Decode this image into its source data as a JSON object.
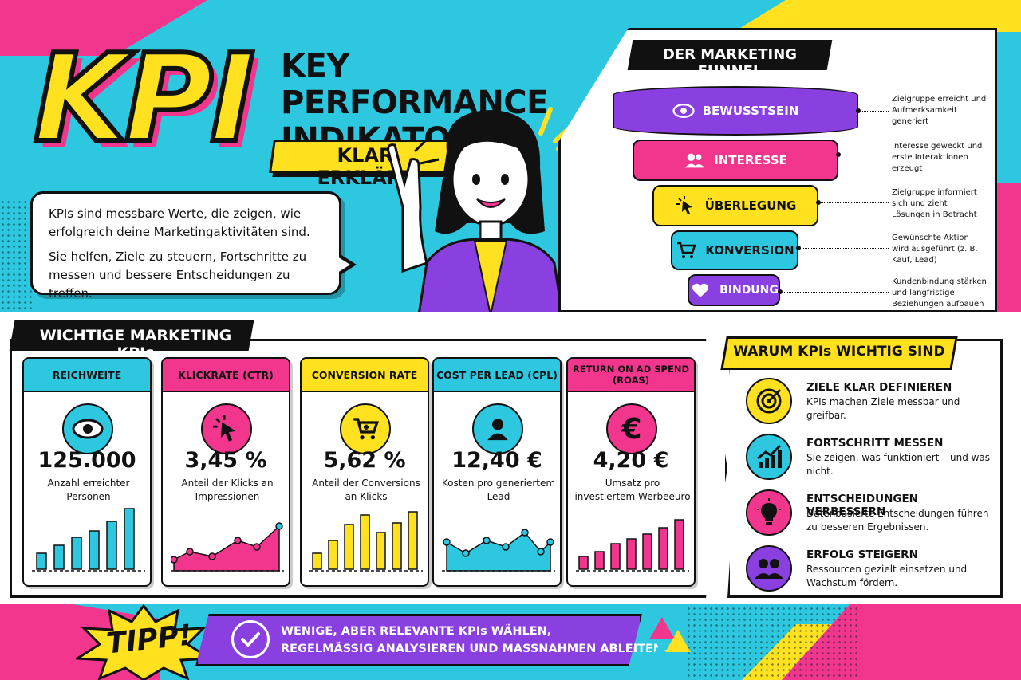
{
  "header": {
    "kpi": "KPI",
    "title": "KEY PERFORMANCE INDIKATOR",
    "subtitle": "KLAR ERKLÄRT",
    "intro_p1": "KPIs sind messbare Werte, die zeigen, wie erfolgreich deine Marketingaktivitäten sind.",
    "intro_p2": "Sie helfen, Ziele zu steuern, Fortschritte zu messen und bessere Entscheidungen zu treffen."
  },
  "funnel": {
    "title": "DER MARKETING FUNNEL",
    "stages": [
      {
        "label": "BEWUSSTSEIN",
        "icon": "eye-icon",
        "color": "#8a3fe0",
        "desc": "Zielgruppe erreicht und Aufmerksamkeit generiert"
      },
      {
        "label": "INTERESSE",
        "icon": "people-icon",
        "color": "#f2358d",
        "desc": "Interesse geweckt und erste Interaktionen erzeugt"
      },
      {
        "label": "ÜBERLEGUNG",
        "icon": "cursor-icon",
        "color": "#ffe11f",
        "desc": "Zielgruppe informiert sich und zieht Lösungen in Betracht"
      },
      {
        "label": "KONVERSION",
        "icon": "cart-icon",
        "color": "#2ec7e0",
        "desc": "Gewünschte Aktion wird ausgeführt (z. B. Kauf, Lead)"
      },
      {
        "label": "BINDUNG",
        "icon": "heart-icon",
        "color": "#8a3fe0",
        "desc": "Kundenbindung stärken und langfristige Beziehungen aufbauen"
      }
    ]
  },
  "kpis": {
    "title": "WICHTIGE MARKETING KPIs",
    "cards": [
      {
        "title": "REICHWEITE",
        "value": "125.000",
        "label": "Anzahl erreichter Personen",
        "color": "#2ec7e0",
        "icon": "eye-icon"
      },
      {
        "title": "KLICKRATE (CTR)",
        "value": "3,45 %",
        "label": "Anteil der Klicks an Impressionen",
        "color": "#f2358d",
        "icon": "cursor-icon"
      },
      {
        "title": "CONVERSION RATE",
        "value": "5,62 %",
        "label": "Anteil der Conversions an Klicks",
        "color": "#ffe11f",
        "icon": "cart-icon"
      },
      {
        "title": "COST PER LEAD (CPL)",
        "value": "12,40 €",
        "label": "Kosten pro generiertem Lead",
        "color": "#2ec7e0",
        "icon": "person-icon"
      },
      {
        "title": "RETURN ON AD SPEND (ROAS)",
        "value": "4,20 €",
        "label": "Umsatz pro investiertem Werbeeuro",
        "color": "#f2358d",
        "icon": "euro-icon"
      }
    ]
  },
  "why": {
    "title": "WARUM KPIs WICHTIG SIND",
    "items": [
      {
        "heading": "ZIELE KLAR DEFINIEREN",
        "text": "KPIs machen Ziele messbar und greifbar.",
        "color": "#ffe11f",
        "icon": "target-icon"
      },
      {
        "heading": "FORTSCHRITT MESSEN",
        "text": "Sie zeigen, was funktioniert – und was nicht.",
        "color": "#2ec7e0",
        "icon": "growth-chart-icon"
      },
      {
        "heading": "ENTSCHEIDUNGEN VERBESSERN",
        "text": "Datenbasierte Entscheidungen führen zu besseren Ergebnissen.",
        "color": "#f2358d",
        "icon": "lightbulb-icon"
      },
      {
        "heading": "ERFOLG STEIGERN",
        "text": "Ressourcen gezielt einsetzen und Wachstum fördern.",
        "color": "#8a3fe0",
        "icon": "team-icon"
      }
    ]
  },
  "tip": {
    "label": "TIPP!",
    "line1": "WENIGE, ABER RELEVANTE KPIs WÄHLEN,",
    "line2": "REGELMÄSSIG ANALYSIEREN UND MASSNAHMEN ABLEITEN."
  },
  "colors": {
    "cyan": "#2ec7e0",
    "pink": "#f2358d",
    "yellow": "#ffe11f",
    "purple": "#8a3fe0"
  }
}
